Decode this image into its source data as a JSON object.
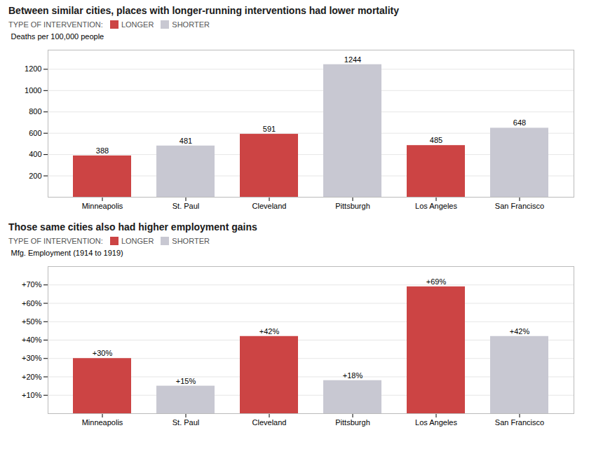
{
  "chart_data": [
    {
      "type": "bar",
      "title": "Between similar cities, places with longer-running interventions had lower mortality",
      "categories": [
        "Minneapolis",
        "St. Paul",
        "Cleveland",
        "Pittsburgh",
        "Los Angeles",
        "San Francisco"
      ],
      "series": [
        {
          "name": "LONGER",
          "color": "#cc4444",
          "values": [
            388,
            null,
            591,
            null,
            485,
            null
          ]
        },
        {
          "name": "SHORTER",
          "color": "#c8c8d2",
          "values": [
            null,
            481,
            null,
            1244,
            null,
            648
          ]
        }
      ],
      "legend_title": "TYPE OF INTERVENTION:",
      "legend": "top left",
      "ylabel": "Deaths per 100,000 people",
      "ylim": [
        0,
        1380
      ],
      "yticks": [
        200,
        400,
        600,
        800,
        1000,
        1200
      ],
      "grid": true,
      "data_labels": true
    },
    {
      "type": "bar",
      "title": "Those same cities also had higher employment gains",
      "categories": [
        "Minneapolis",
        "St. Paul",
        "Cleveland",
        "Pittsburgh",
        "Los Angeles",
        "San Francisco"
      ],
      "series": [
        {
          "name": "LONGER",
          "color": "#cc4444",
          "values": [
            30,
            null,
            42,
            null,
            69,
            null
          ],
          "value_labels": [
            "+30%",
            null,
            "+42%",
            null,
            "+69%",
            null
          ]
        },
        {
          "name": "SHORTER",
          "color": "#c8c8d2",
          "values": [
            null,
            15,
            null,
            18,
            null,
            42
          ],
          "value_labels": [
            null,
            "+15%",
            null,
            "+18%",
            null,
            "+42%"
          ]
        }
      ],
      "legend_title": "TYPE OF INTERVENTION:",
      "legend": "top left",
      "ylabel": "Mfg. Employment (1914 to 1919)",
      "ylim": [
        0,
        80
      ],
      "yticks": [
        {
          "value": 10,
          "label": "+10%"
        },
        {
          "value": 20,
          "label": "+20%"
        },
        {
          "value": 30,
          "label": "+30%"
        },
        {
          "value": 40,
          "label": "+40%"
        },
        {
          "value": 50,
          "label": "+50%"
        },
        {
          "value": 60,
          "label": "+60%"
        },
        {
          "value": 70,
          "label": "+70%"
        }
      ],
      "grid": true,
      "data_labels": true
    }
  ]
}
